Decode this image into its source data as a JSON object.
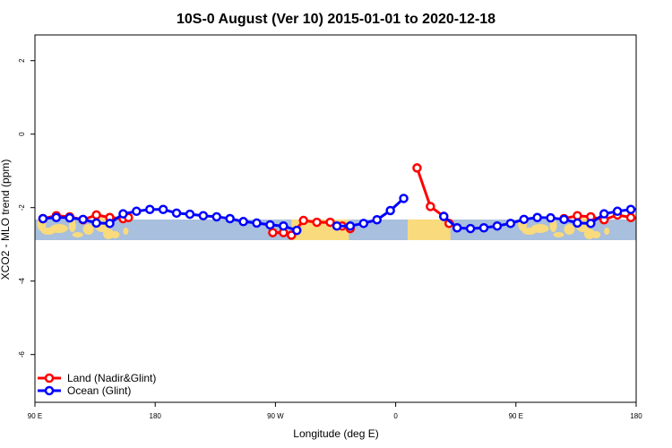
{
  "chart_data": {
    "type": "line",
    "title": "10S-0 August (Ver 10)   2015-01-01 to 2020-12-18",
    "xlabel": "Longitude (deg E)",
    "ylabel": "XCO2 - MLO trend (ppm)",
    "xlim": [
      90,
      450
    ],
    "ylim": [
      -7.3,
      2.7
    ],
    "x_ticks": [
      {
        "value": 90,
        "label": "90 E"
      },
      {
        "value": 180,
        "label": "180"
      },
      {
        "value": 270,
        "label": "90 W"
      },
      {
        "value": 360,
        "label": "0"
      },
      {
        "value": 450,
        "label": "90 E"
      },
      {
        "value": 540,
        "label": "180"
      }
    ],
    "y_ticks": [
      {
        "value": 2,
        "label": "2"
      },
      {
        "value": 0,
        "label": "0"
      },
      {
        "value": -2,
        "label": "-2"
      },
      {
        "value": -4,
        "label": "-4"
      },
      {
        "value": -6,
        "label": "-6"
      }
    ],
    "x_range_shown": [
      90,
      540
    ],
    "grid": false,
    "legend_position": "bottom-left",
    "map_band": {
      "lat_south": -10,
      "lat_north": 0,
      "ocean_color": "#a8bfdd",
      "land_color": "#f9da7c"
    },
    "series": [
      {
        "name": "Land (Nadir&Glint)",
        "color": "#ff0000",
        "segments": [
          {
            "x": [
              96,
              106,
              116,
              126,
              136,
              146,
              156,
              160
            ],
            "y": [
              -2.3,
              -2.22,
              -2.25,
              -2.33,
              -2.2,
              -2.27,
              -2.3,
              -2.27
            ]
          },
          {
            "x": [
              268,
              276,
              282,
              291,
              301,
              311,
              320,
              326
            ],
            "y": [
              -2.68,
              -2.68,
              -2.75,
              -2.35,
              -2.4,
              -2.4,
              -2.5,
              -2.57
            ]
          },
          {
            "x": [
              376,
              386,
              396,
              400
            ],
            "y": [
              -0.92,
              -1.97,
              -2.24,
              -2.43
            ]
          },
          {
            "x": [
              486,
              496,
              506,
              516,
              526,
              536,
              546,
              550
            ],
            "y": [
              -2.3,
              -2.22,
              -2.25,
              -2.33,
              -2.2,
              -2.27,
              -2.3,
              -2.27
            ]
          }
        ]
      },
      {
        "name": "Ocean (Glint)",
        "color": "#0000ff",
        "segments": [
          {
            "x": [
              96,
              106,
              116,
              126,
              136,
              146,
              156,
              166,
              176,
              186,
              196,
              206,
              216,
              226,
              236,
              246,
              256,
              266,
              276,
              286
            ],
            "y": [
              -2.3,
              -2.27,
              -2.28,
              -2.32,
              -2.42,
              -2.43,
              -2.17,
              -2.1,
              -2.05,
              -2.05,
              -2.15,
              -2.18,
              -2.22,
              -2.25,
              -2.3,
              -2.38,
              -2.42,
              -2.47,
              -2.5,
              -2.62
            ]
          },
          {
            "x": [
              316,
              326,
              336,
              346,
              356,
              366
            ],
            "y": [
              -2.5,
              -2.5,
              -2.43,
              -2.33,
              -2.08,
              -1.75
            ]
          },
          {
            "x": [
              396,
              406,
              416,
              426,
              436,
              446,
              456,
              466,
              476,
              486,
              496,
              506,
              516,
              526,
              536,
              546,
              556,
              566,
              576,
              586,
              596,
              606,
              616
            ],
            "y": [
              -2.24,
              -2.55,
              -2.57,
              -2.55,
              -2.5,
              -2.43,
              -2.32,
              -2.27,
              -2.28,
              -2.32,
              -2.42,
              -2.43,
              -2.17,
              -2.1,
              -2.05,
              -2.05,
              -2.15,
              -2.18,
              -2.22,
              -2.25,
              -2.3,
              -2.38,
              -2.42
            ]
          }
        ]
      }
    ]
  }
}
